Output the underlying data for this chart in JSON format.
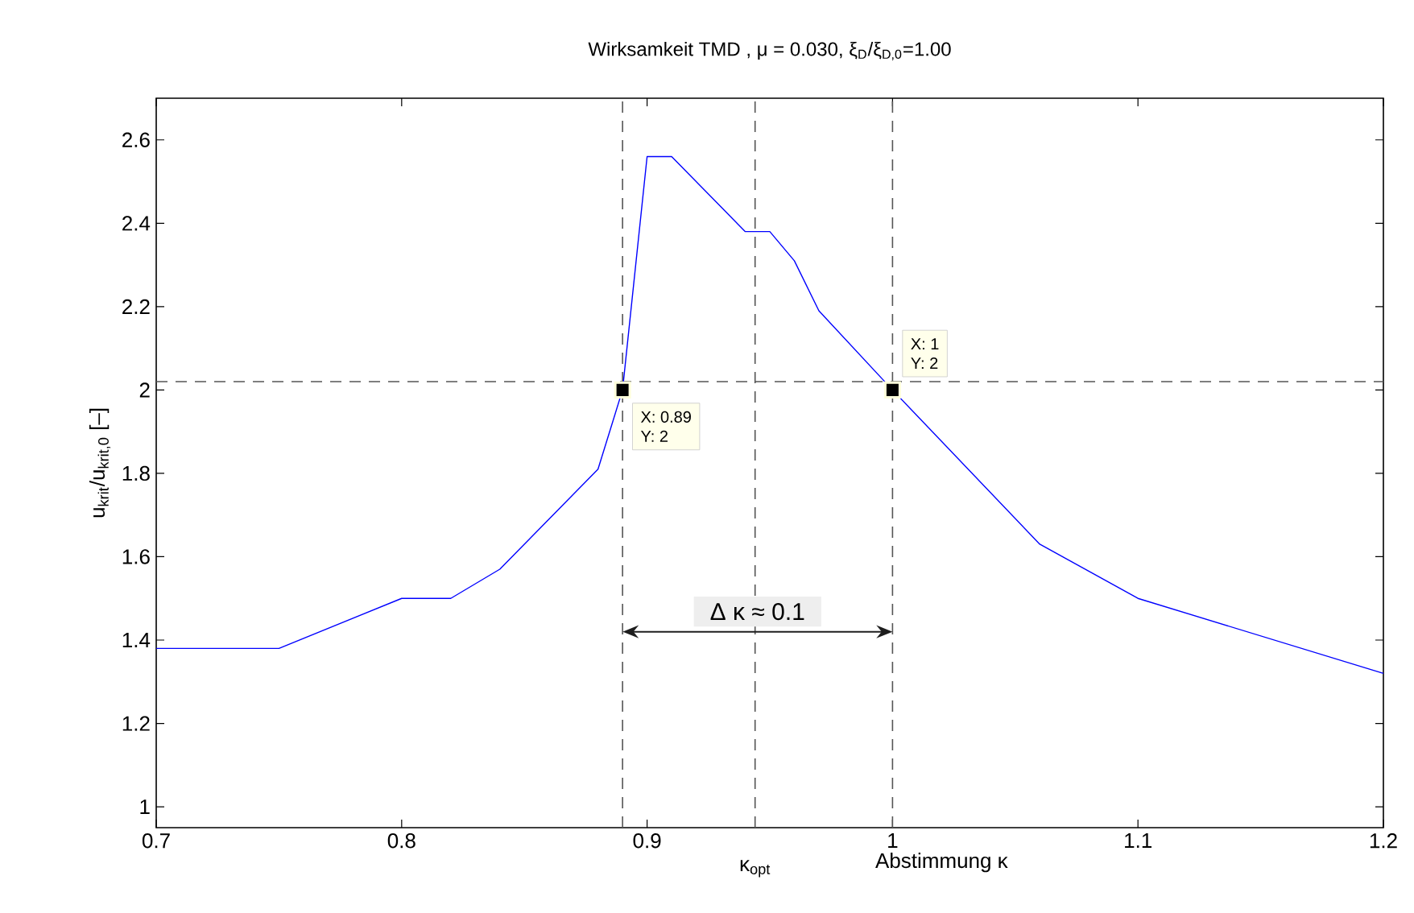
{
  "chart_data": {
    "type": "line",
    "title": "Wirksamkeit TMD , μ = 0.030, ξ$_{D}$/ξ$_{D,0}$=1.00",
    "xlabel": "Abstimmung κ",
    "ylabel": "u$_{krit}$/u$_{krit,0}$ [–]",
    "series": [
      {
        "type": "line",
        "color": "#0000ff",
        "x": [
          0.7,
          0.75,
          0.8,
          0.82,
          0.84,
          0.88,
          0.89,
          0.9,
          0.91,
          0.94,
          0.95,
          0.96,
          0.97,
          1.0,
          1.06,
          1.1,
          1.2
        ],
        "values": [
          1.38,
          1.38,
          1.5,
          1.5,
          1.57,
          1.81,
          2.0,
          2.56,
          2.56,
          2.38,
          2.38,
          2.31,
          2.19,
          2.0,
          1.63,
          1.5,
          1.32
        ]
      },
      {
        "type": "scatter",
        "color": "#000000",
        "marker": "square",
        "x": [
          0.89,
          1.0
        ],
        "values": [
          2,
          2
        ]
      }
    ],
    "annotations": [
      {
        "text": "X: 0.89",
        "x": 0.89,
        "y": 2
      },
      {
        "text": "Y: 2",
        "x": 0.89,
        "y": 2
      },
      {
        "text": "X: 1",
        "x": 1.0,
        "y": 2
      },
      {
        "text": "Y: 2",
        "x": 1.0,
        "y": 2
      },
      {
        "text": "Δ κ ≈ 0.1",
        "x": 0.945,
        "y": 1.42
      }
    ],
    "ref_lines": [
      {
        "axis": "x",
        "value": 0.89,
        "color": "#555555",
        "line_style": "dashed"
      },
      {
        "axis": "x",
        "value": 0.944,
        "label": "κ$_{opt}$",
        "color": "#555555",
        "line_style": "dashed"
      },
      {
        "axis": "x",
        "value": 1.0,
        "color": "#555555",
        "line_style": "dashed"
      },
      {
        "axis": "y",
        "value": 2.02,
        "color": "#555555",
        "line_style": "dashed"
      }
    ],
    "xlim": [
      0.7,
      1.2
    ],
    "ylim": [
      0.95,
      2.7
    ],
    "xticks": [
      0.7,
      0.8,
      0.9,
      1,
      1.1,
      1.2
    ],
    "yticks": [
      1,
      1.2,
      1.4,
      1.6,
      1.8,
      2,
      2.2,
      2.4,
      2.6
    ]
  }
}
